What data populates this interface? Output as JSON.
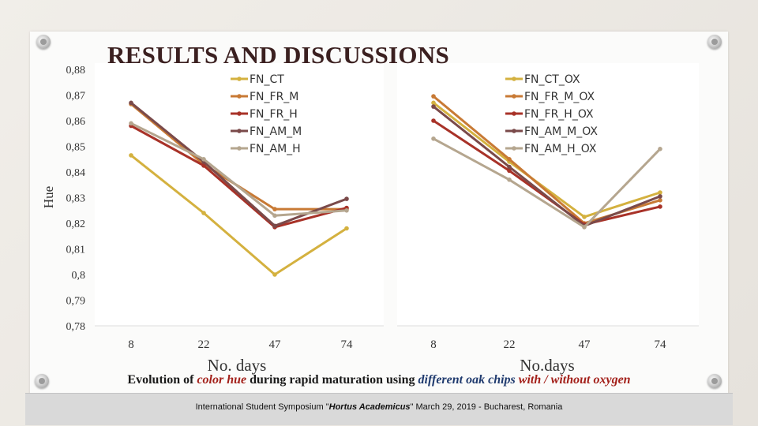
{
  "slide": {
    "title": "RESULTS AND DISCUSSIONS",
    "caption": {
      "part1": "Evolution of ",
      "part2": "color hue",
      "part3": " during rapid maturation using ",
      "part4": "different oak chips",
      "part5": " ",
      "part6": "with / without oxygen"
    },
    "footer": {
      "part1": "International Student Symposium \"",
      "part2": "Hortus Academicus",
      "part3": "\" March 29, 2019 - Bucharest, Romania"
    }
  },
  "chart_data": [
    {
      "type": "line",
      "title": "",
      "xlabel": "No. days",
      "ylabel": "Hue",
      "x": [
        8,
        22,
        47,
        74
      ],
      "x_tick_labels": [
        "8",
        "22",
        "47",
        "74"
      ],
      "ylim": [
        0.78,
        0.88
      ],
      "y_tick_labels": [
        "0,88",
        "0,87",
        "0,86",
        "0,85",
        "0,84",
        "0,83",
        "0,82",
        "0,81",
        "0,8",
        "0,79",
        "0,78"
      ],
      "grid": false,
      "legend_position": "top-center",
      "series": [
        {
          "name": "FN_CT",
          "color": "#d4b13f",
          "values": [
            0.8465,
            0.824,
            0.8,
            0.818
          ]
        },
        {
          "name": "FN_FR_M",
          "color": "#c87a35",
          "values": [
            0.8665,
            0.843,
            0.8255,
            0.8255
          ]
        },
        {
          "name": "FN_FR_H",
          "color": "#a83228",
          "values": [
            0.858,
            0.8425,
            0.8185,
            0.826
          ]
        },
        {
          "name": "FN_AM_M",
          "color": "#7a4a4a",
          "values": [
            0.867,
            0.844,
            0.819,
            0.8295
          ]
        },
        {
          "name": "FN_AM_H",
          "color": "#b5a68f",
          "values": [
            0.859,
            0.845,
            0.823,
            0.825
          ]
        }
      ]
    },
    {
      "type": "line",
      "title": "",
      "xlabel": "No.days",
      "ylabel": "",
      "x": [
        8,
        22,
        47,
        74
      ],
      "x_tick_labels": [
        "8",
        "22",
        "47",
        "74"
      ],
      "ylim": [
        0.78,
        0.88
      ],
      "grid": false,
      "legend_position": "top-right",
      "series": [
        {
          "name": "FN_CT_OX",
          "color": "#d4b13f",
          "values": [
            0.867,
            0.844,
            0.8225,
            0.832
          ]
        },
        {
          "name": "FN_FR_M_OX",
          "color": "#c87a35",
          "values": [
            0.8695,
            0.845,
            0.82,
            0.829
          ]
        },
        {
          "name": "FN_FR_H_OX",
          "color": "#a83228",
          "values": [
            0.86,
            0.8405,
            0.8195,
            0.8265
          ]
        },
        {
          "name": "FN_AM_M_OX",
          "color": "#7a4a4a",
          "values": [
            0.8655,
            0.842,
            0.819,
            0.8305
          ]
        },
        {
          "name": "FN_AM_H_OX",
          "color": "#b5a68f",
          "values": [
            0.853,
            0.837,
            0.8185,
            0.849
          ]
        }
      ]
    }
  ]
}
